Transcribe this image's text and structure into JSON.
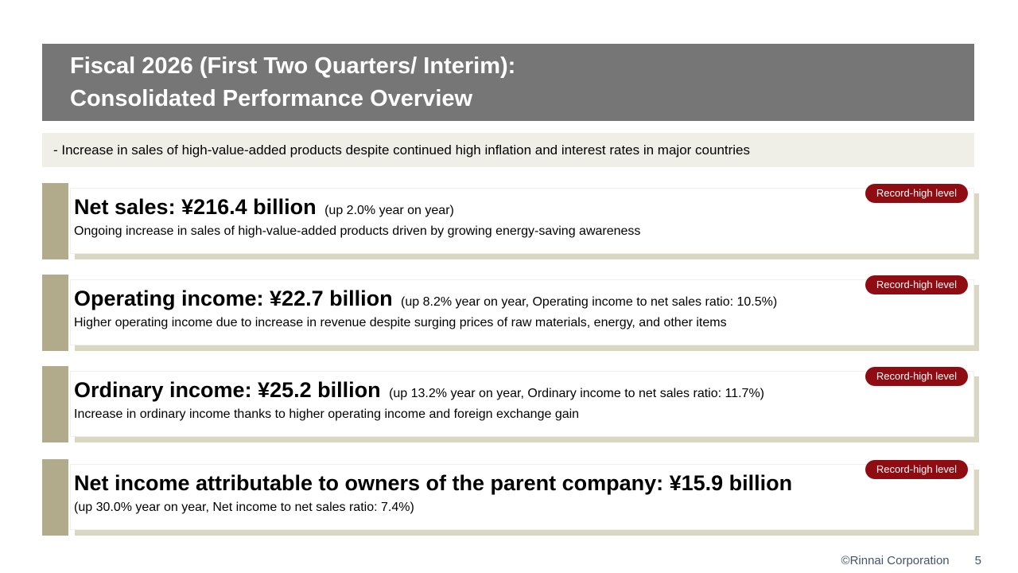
{
  "title": {
    "line1": "Fiscal 2026 (First Two Quarters/ Interim):",
    "line2": "Consolidated Performance Overview"
  },
  "subtitle": "- Increase in sales of high-value-added products despite continued high inflation and interest rates in major countries",
  "blocks": [
    {
      "badge": "Record-high level",
      "heading": "Net sales: ¥216.4 billion",
      "note": "(up 2.0% year on year)",
      "description": "Ongoing increase in sales of high-value-added products driven by growing energy-saving awareness"
    },
    {
      "badge": "Record-high level",
      "heading": "Operating income: ¥22.7 billion",
      "note": "(up 8.2% year on year, Operating income to net sales ratio: 10.5%)",
      "description": "Higher operating income due to increase in revenue despite surging prices of raw materials, energy, and other items"
    },
    {
      "badge": "Record-high level",
      "heading": "Ordinary income: ¥25.2 billion",
      "note": "(up 13.2% year on year, Ordinary income to net sales ratio: 11.7%)",
      "description": "Increase in ordinary income thanks to higher operating income and foreign exchange gain"
    },
    {
      "badge": "Record-high level",
      "heading": "Net income attributable to owners of the parent company: ¥15.9 billion",
      "note": "",
      "description": "(up 30.0% year on year, Net income to net sales ratio: 7.4%)"
    }
  ],
  "footer": {
    "copyright": "©Rinnai Corporation",
    "page_number": "5"
  },
  "colors": {
    "header_bg": "#767676",
    "subtitle_bg": "#f0efe7",
    "accent_bar": "#b2ab8b",
    "card_shadow": "#d9d6c2",
    "badge_bg": "#8e0c12",
    "footer_text": "#44546a"
  }
}
